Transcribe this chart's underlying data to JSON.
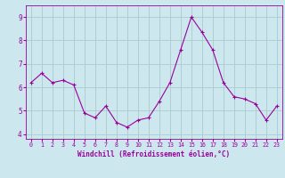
{
  "x": [
    0,
    1,
    2,
    3,
    4,
    5,
    6,
    7,
    8,
    9,
    10,
    11,
    12,
    13,
    14,
    15,
    16,
    17,
    18,
    19,
    20,
    21,
    22,
    23
  ],
  "y": [
    6.2,
    6.6,
    6.2,
    6.3,
    6.1,
    4.9,
    4.7,
    5.2,
    4.5,
    4.3,
    4.6,
    4.7,
    5.4,
    6.2,
    7.6,
    9.0,
    8.35,
    7.6,
    6.2,
    5.6,
    5.5,
    5.3,
    4.6,
    5.2
  ],
  "line_color": "#990099",
  "marker": "+",
  "marker_color": "#990099",
  "bg_color": "#cce8ee",
  "grid_color": "#aacccc",
  "xlabel": "Windchill (Refroidissement éolien,°C)",
  "xlabel_color": "#990099",
  "tick_color": "#990099",
  "ylim": [
    3.8,
    9.5
  ],
  "xlim": [
    -0.5,
    23.5
  ],
  "yticks": [
    4,
    5,
    6,
    7,
    8,
    9
  ],
  "xticks": [
    0,
    1,
    2,
    3,
    4,
    5,
    6,
    7,
    8,
    9,
    10,
    11,
    12,
    13,
    14,
    15,
    16,
    17,
    18,
    19,
    20,
    21,
    22,
    23
  ]
}
